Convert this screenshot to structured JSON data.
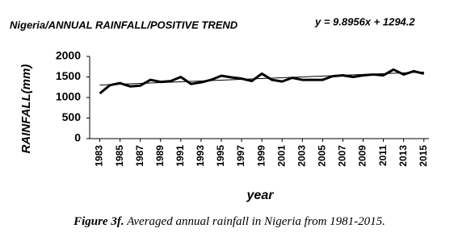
{
  "chart_data": {
    "type": "line",
    "title": "Nigeria/ANNUAL RAINFALL/POSITIVE TREND",
    "trend_equation": "y = 9.8956x + 1294.2",
    "trend": {
      "slope": 9.8956,
      "intercept": 1294.2
    },
    "x_label": "year",
    "y_label": "RAINFALL(mm)",
    "x": [
      1983,
      1984,
      1985,
      1986,
      1987,
      1988,
      1989,
      1990,
      1991,
      1992,
      1993,
      1994,
      1995,
      1996,
      1997,
      1998,
      1999,
      2000,
      2001,
      2002,
      2003,
      2004,
      2005,
      2006,
      2007,
      2008,
      2009,
      2010,
      2011,
      2012,
      2013,
      2014,
      2015
    ],
    "series": [
      {
        "color": "#000000",
        "values": [
          1100,
          1300,
          1350,
          1270,
          1290,
          1430,
          1380,
          1400,
          1500,
          1330,
          1370,
          1430,
          1530,
          1490,
          1460,
          1400,
          1580,
          1430,
          1390,
          1480,
          1430,
          1430,
          1430,
          1520,
          1540,
          1500,
          1540,
          1560,
          1540,
          1680,
          1560,
          1640,
          1580
        ]
      }
    ],
    "xlim": [
      1982,
      2015.5
    ],
    "xticks": [
      1983,
      1985,
      1987,
      1989,
      1991,
      1993,
      1995,
      1997,
      1999,
      2001,
      2003,
      2005,
      2007,
      2009,
      2011,
      2013,
      2015
    ],
    "ylim": [
      0,
      2000
    ],
    "yticks": [
      0,
      500,
      1000,
      1500,
      2000
    ],
    "grid": false
  },
  "caption": {
    "label": "Figure 3f.",
    "text": "Averaged annual rainfall in Nigeria from 1981-2015."
  }
}
